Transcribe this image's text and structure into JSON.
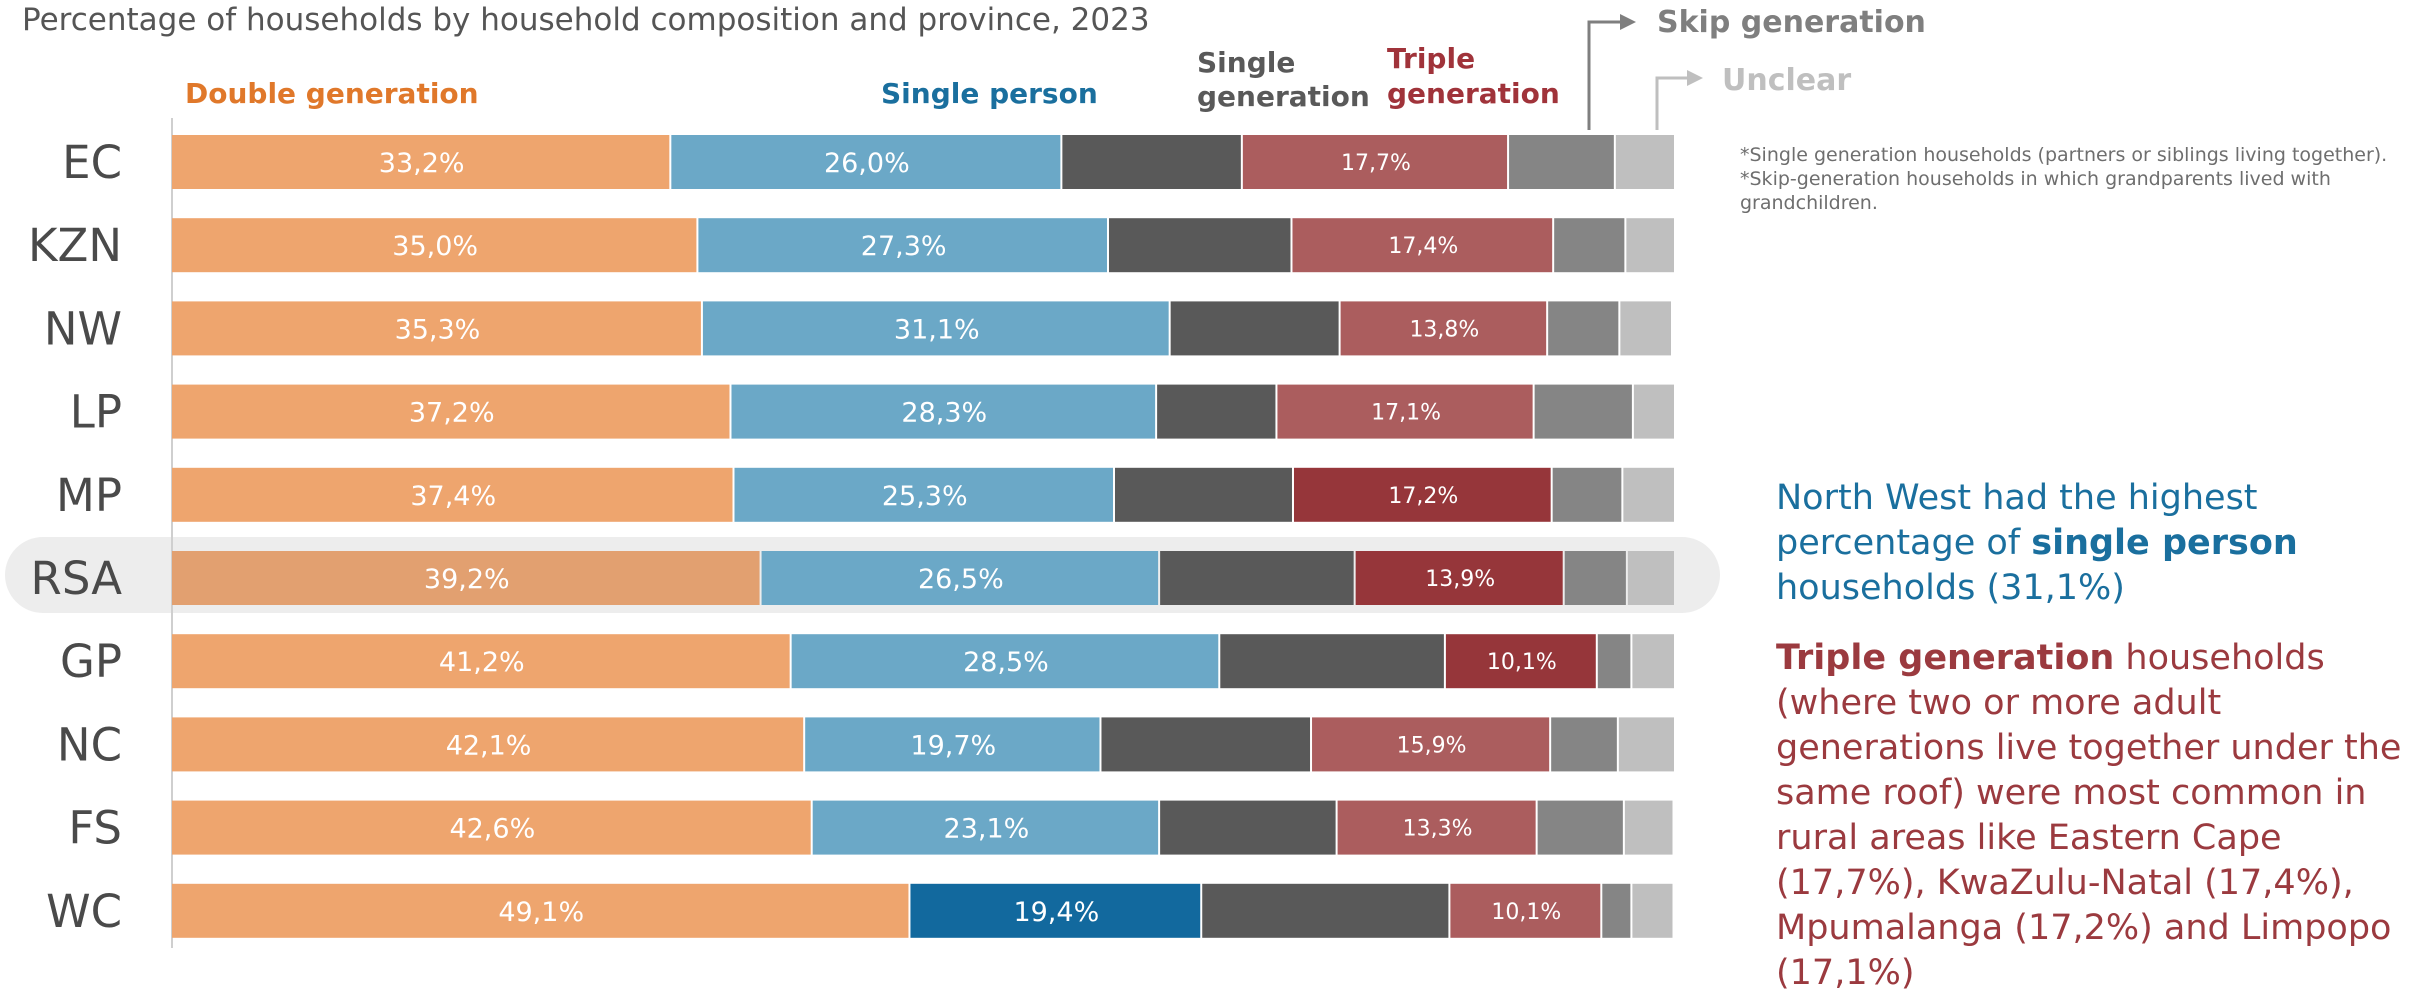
{
  "title": "Percentage of households by household composition and province, 2023",
  "legend": {
    "double": "Double generation",
    "single_person": "Single person",
    "single_gen_line1": "Single",
    "single_gen_line2": "generation",
    "triple_line1": "Triple",
    "triple_line2": "generation",
    "skip": "Skip generation",
    "unclear": "Unclear"
  },
  "notes": {
    "note1": "*Single generation households (partners or siblings living together).",
    "note2": "*Skip-generation households in which grandparents lived with grandchildren."
  },
  "insights": {
    "p1_before": "North West had the highest percentage of ",
    "p1_bold": "single person",
    "p1_after": " households (31,1%)",
    "p2_bold": "Triple generation",
    "p2_after": " households (where two or more adult generations live together under the same roof) were most common in rural areas like Eastern Cape (17,7%), KwaZulu-Natal (17,4%), Mpumalanga (17,2%) and Limpopo (17,1%)"
  },
  "colors": {
    "double": "#eea56e",
    "double_rsa": "#e2a070",
    "single_person": "#6ba8c7",
    "single_person_highlight": "#12699e",
    "single_generation": "#595959",
    "triple": "#ab5d5e",
    "triple_highlight": "#96363a",
    "skip": "#858585",
    "unclear": "#bfbfbf",
    "legend_double": "#e0782a",
    "legend_single_person": "#1a6f9e",
    "legend_single_gen": "#595959",
    "legend_triple": "#a0333a",
    "legend_skip": "#7f7f7f",
    "legend_unclear": "#bfbfbf"
  },
  "chart_data": {
    "type": "bar",
    "orientation": "horizontal-stacked-100",
    "title": "Percentage of households by household composition and province, 2023",
    "categories": [
      "EC",
      "KZN",
      "NW",
      "LP",
      "MP",
      "RSA",
      "GP",
      "NC",
      "FS",
      "WC"
    ],
    "highlighted_category": "RSA",
    "xlim": [
      0,
      100
    ],
    "series": [
      {
        "name": "Double generation",
        "labels": [
          "33,2%",
          "35,0%",
          "35,3%",
          "37,2%",
          "37,4%",
          "39,2%",
          "41,2%",
          "42,1%",
          "42,6%",
          "49,1%"
        ],
        "values": [
          33.2,
          35.0,
          35.3,
          37.2,
          37.4,
          39.2,
          41.2,
          42.1,
          42.6,
          49.1
        ]
      },
      {
        "name": "Single person",
        "labels": [
          "26,0%",
          "27,3%",
          "31,1%",
          "28,3%",
          "25,3%",
          "26,5%",
          "28,5%",
          "19,7%",
          "23,1%",
          "19,4%"
        ],
        "values": [
          26.0,
          27.3,
          31.1,
          28.3,
          25.3,
          26.5,
          28.5,
          19.7,
          23.1,
          19.4
        ]
      },
      {
        "name": "Single generation",
        "labels": [
          "",
          "",
          "",
          "",
          "",
          "",
          "",
          "",
          "",
          ""
        ],
        "values": [
          12.0,
          12.2,
          11.3,
          8.0,
          11.9,
          13.0,
          15.0,
          14.0,
          11.8,
          16.5
        ]
      },
      {
        "name": "Triple generation",
        "labels": [
          "17,7%",
          "17,4%",
          "13,8%",
          "17,1%",
          "17,2%",
          "13,9%",
          "10,1%",
          "15,9%",
          "13,3%",
          "10,1%"
        ],
        "values": [
          17.7,
          17.4,
          13.8,
          17.1,
          17.2,
          13.9,
          10.1,
          15.9,
          13.3,
          10.1
        ],
        "highlight": [
          "",
          "",
          "",
          "",
          "MP",
          "RSA",
          "GP",
          "",
          "",
          ""
        ]
      },
      {
        "name": "Skip generation",
        "labels": [
          "",
          "",
          "",
          "",
          "",
          "",
          "",
          "",
          "",
          ""
        ],
        "values": [
          7.1,
          4.8,
          4.8,
          6.6,
          4.7,
          4.2,
          2.3,
          4.5,
          5.8,
          2.0
        ]
      },
      {
        "name": "Unclear",
        "labels": [
          "",
          "",
          "",
          "",
          "",
          "",
          "",
          "",
          "",
          ""
        ],
        "values": [
          4.0,
          3.3,
          3.5,
          2.8,
          3.5,
          3.2,
          2.9,
          3.8,
          3.3,
          2.8
        ]
      }
    ],
    "single_person_highlight": [
      "",
      "",
      "",
      "",
      "",
      "",
      "",
      "",
      "",
      "WC"
    ]
  }
}
